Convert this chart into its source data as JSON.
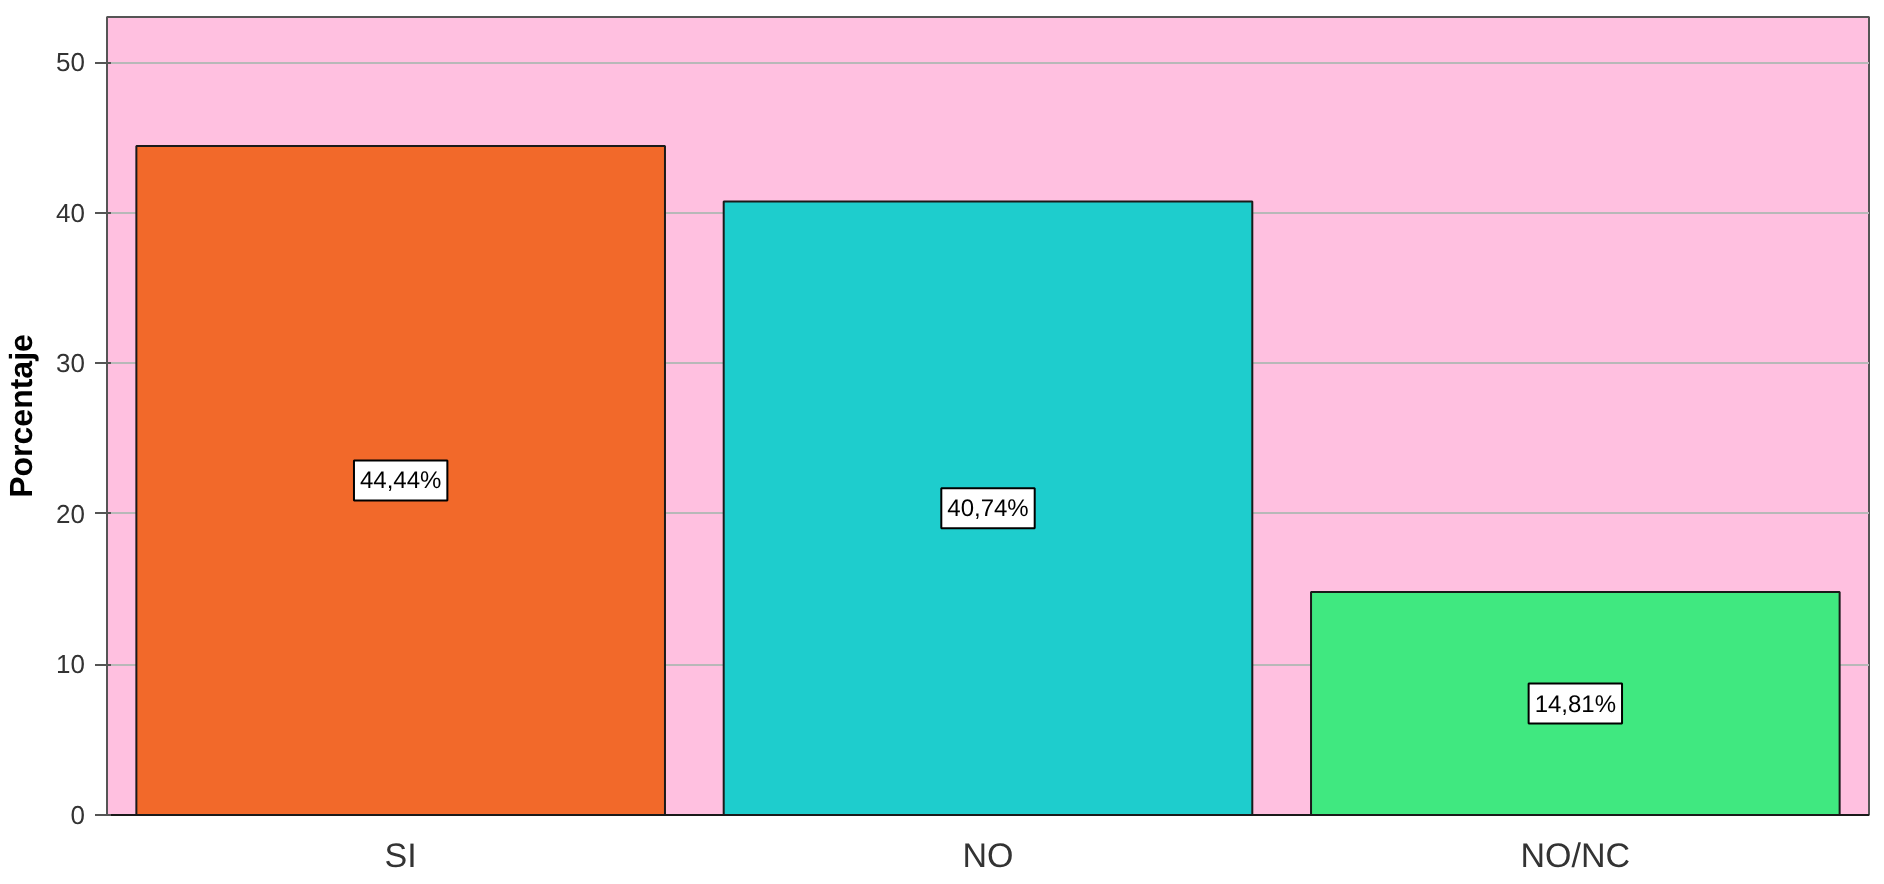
{
  "chart_data": {
    "type": "bar",
    "categories": [
      "SI",
      "NO",
      "NO/NC"
    ],
    "values": [
      44.44,
      40.74,
      14.81
    ],
    "colors": [
      "#f2692a",
      "#1ecdcd",
      "#40e880"
    ],
    "value_labels": [
      "44,44%",
      "40,74%",
      "14,81%"
    ],
    "ylabel": "Porcentaje",
    "ylim": [
      0,
      53
    ],
    "yticks": [
      0,
      10,
      20,
      30,
      40,
      50
    ],
    "grid": "y"
  }
}
